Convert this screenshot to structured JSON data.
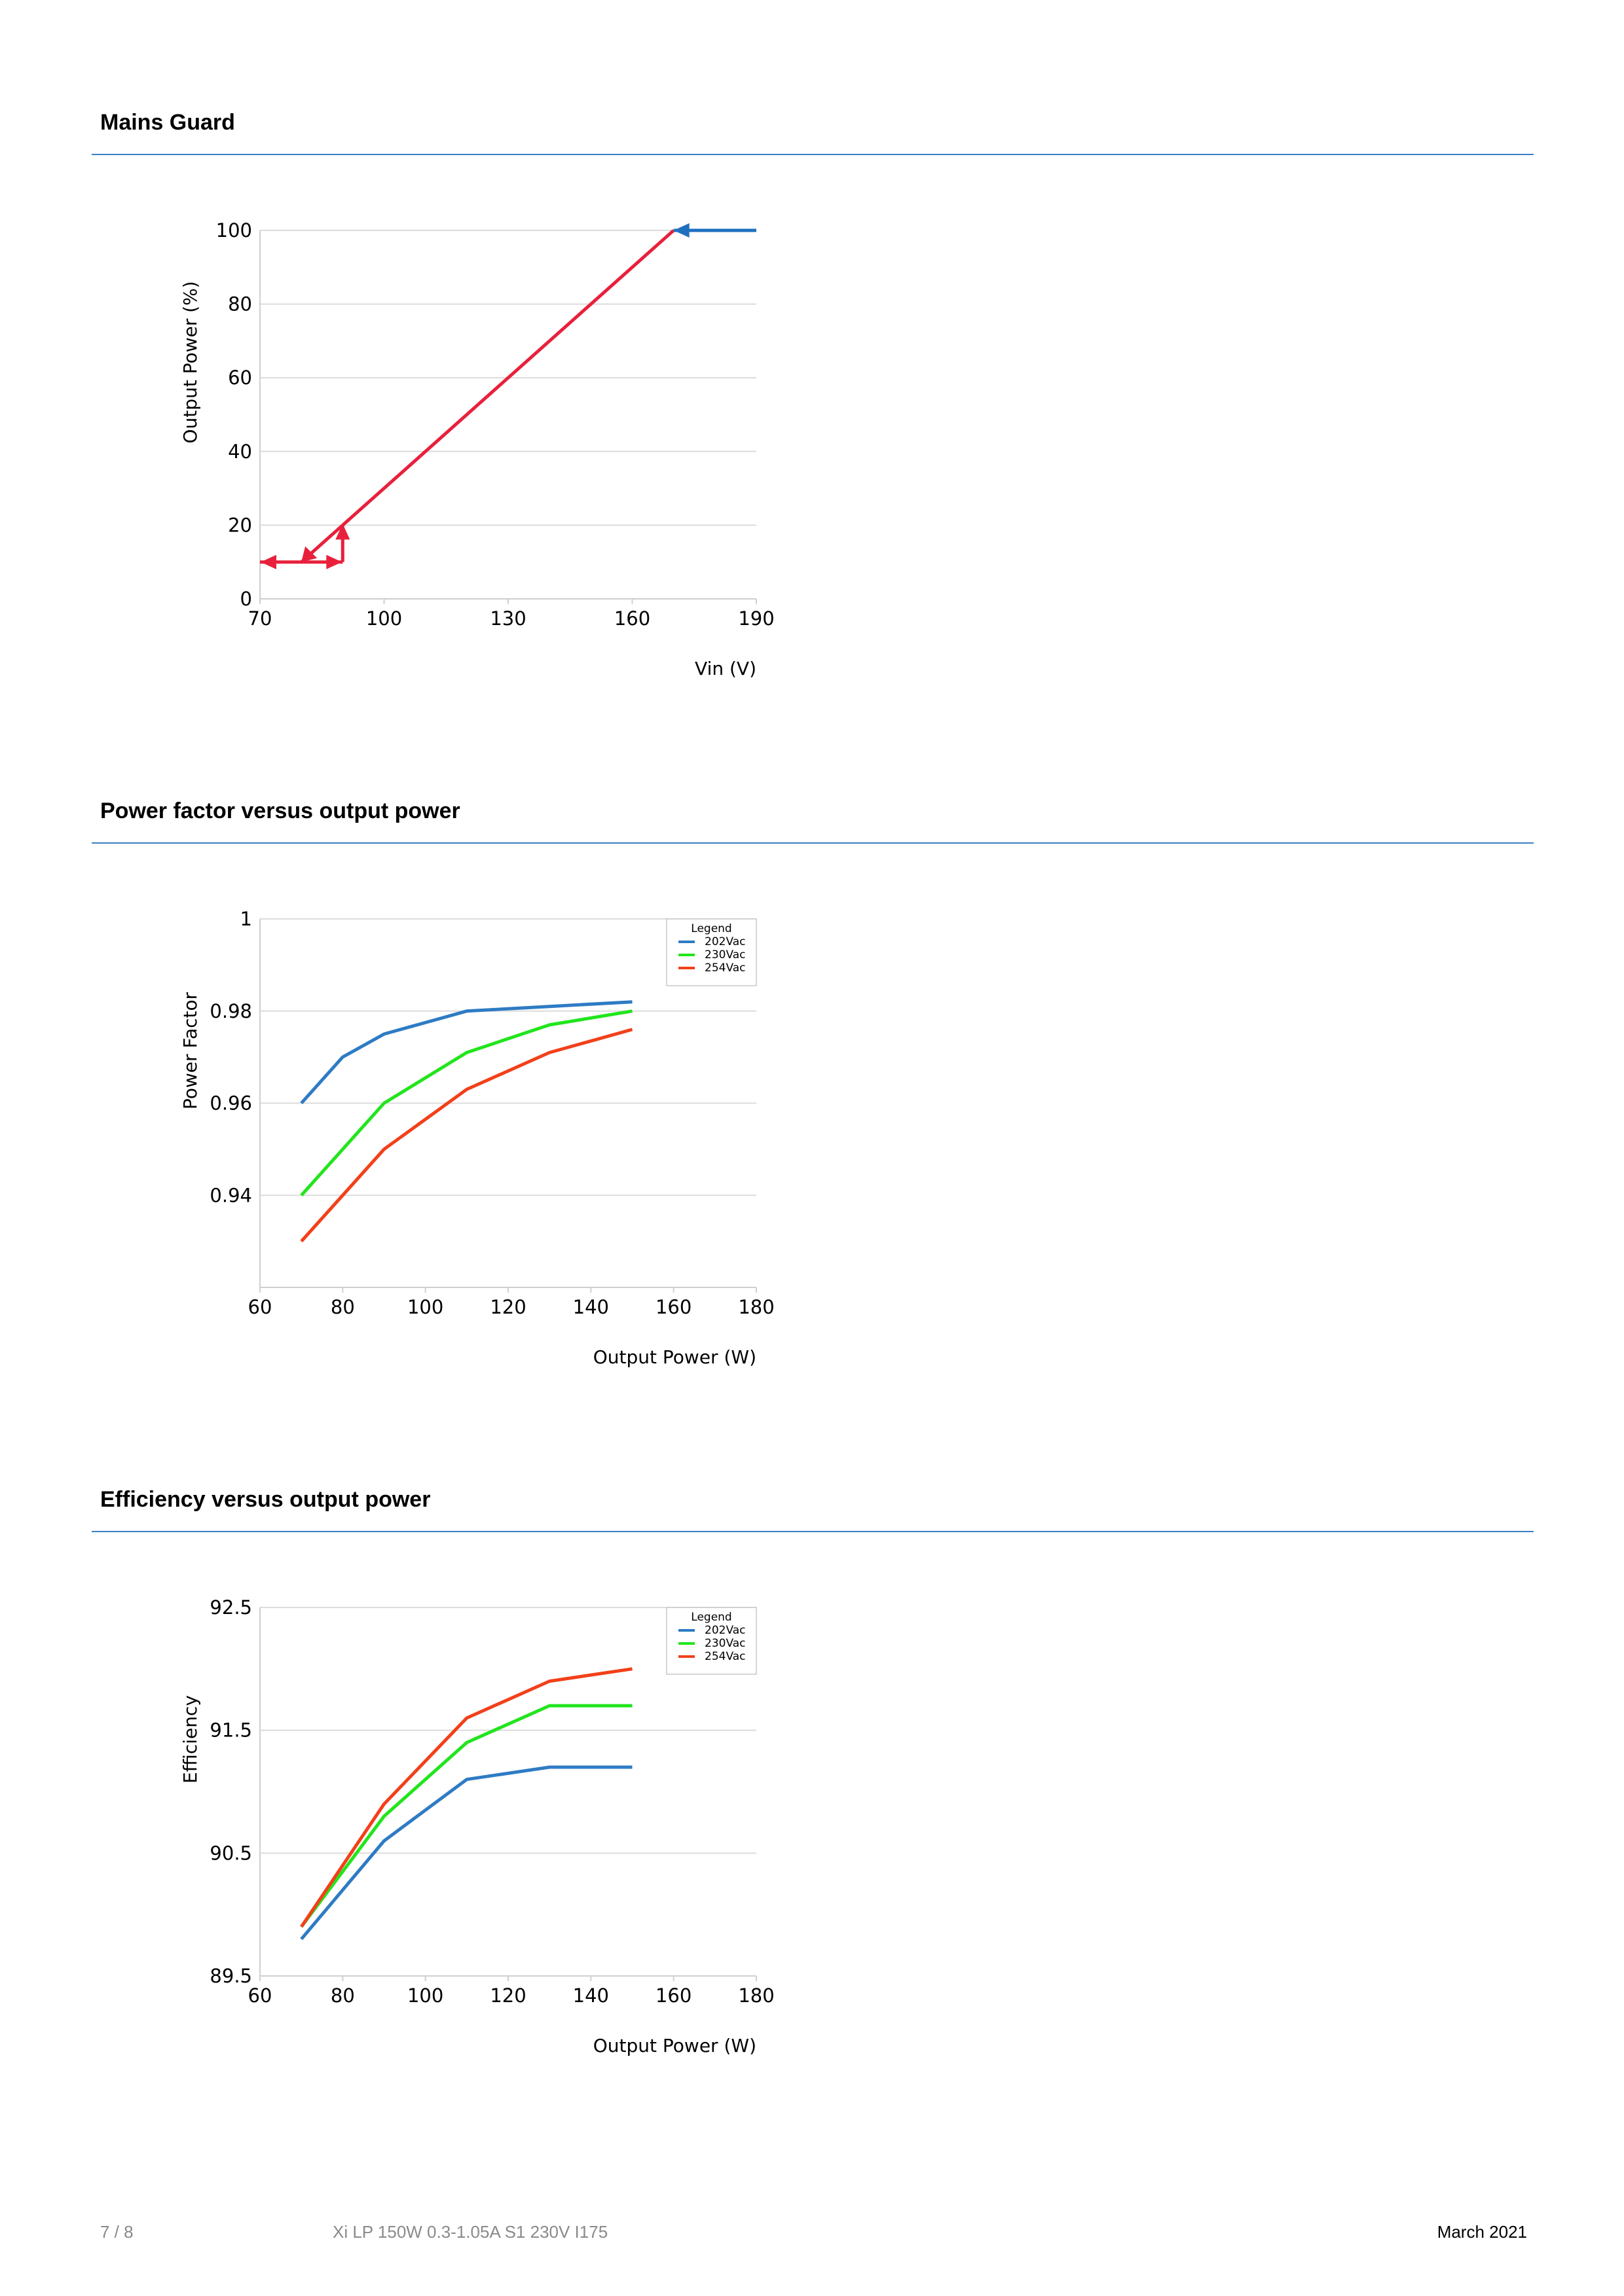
{
  "sections": [
    {
      "title": "Mains Guard"
    },
    {
      "title": "Power factor versus output power"
    },
    {
      "title": "Efficiency versus output power"
    }
  ],
  "footer": {
    "page": "7 / 8",
    "product": "Xi LP 150W 0.3-1.05A S1 230V I175",
    "date": "March 2021"
  },
  "chart_data": [
    {
      "type": "line",
      "title": "",
      "xlabel": "Vin (V)",
      "ylabel": "Output Power (%)",
      "xlim": [
        70,
        190
      ],
      "ylim": [
        0,
        100
      ],
      "xticks": [
        "70",
        "100",
        "130",
        "160",
        "190"
      ],
      "yticks": [
        "0",
        "20",
        "40",
        "60",
        "80",
        "100"
      ],
      "grid": true,
      "series": [
        {
          "color": "#e8203c",
          "points": [
            [
              70,
              10
            ],
            [
              90,
              10
            ]
          ]
        },
        {
          "color": "#e8203c",
          "points": [
            [
              90,
              10
            ],
            [
              90,
              20
            ]
          ]
        },
        {
          "color": "#e8203c",
          "points": [
            [
              90,
              20
            ],
            [
              170,
              100
            ]
          ]
        },
        {
          "color": "#e8203c",
          "points": [
            [
              80,
              10
            ],
            [
              90,
              20
            ]
          ]
        },
        {
          "color": "#1f6fbf",
          "points": [
            [
              190,
              100
            ],
            [
              170,
              100
            ]
          ]
        }
      ]
    },
    {
      "type": "line",
      "title": "",
      "xlabel": "Output Power (W)",
      "ylabel": "Power Factor",
      "xlim": [
        60,
        180
      ],
      "ylim": [
        0.92,
        1
      ],
      "xticks": [
        "60",
        "80",
        "100",
        "120",
        "140",
        "160",
        "180"
      ],
      "yticks": [
        "0.94",
        "0.96",
        "0.98",
        "1"
      ],
      "grid": true,
      "legend": {
        "title": "Legend",
        "position": "top-right"
      },
      "x": [
        70,
        80,
        90,
        110,
        130,
        150
      ],
      "series": [
        {
          "name": "202Vac",
          "color": "#2e7bc4",
          "values": [
            0.96,
            0.97,
            0.975,
            0.98,
            0.981,
            0.982
          ]
        },
        {
          "name": "230Vac",
          "color": "#22e51d",
          "values": [
            0.94,
            0.95,
            0.96,
            0.971,
            0.977,
            0.98
          ]
        },
        {
          "name": "254Vac",
          "color": "#f2401a",
          "values": [
            0.93,
            0.94,
            0.95,
            0.963,
            0.971,
            0.976
          ]
        }
      ]
    },
    {
      "type": "line",
      "title": "",
      "xlabel": "Output Power (W)",
      "ylabel": "Efficiency",
      "xlim": [
        60,
        180
      ],
      "ylim": [
        89.5,
        92.5
      ],
      "xticks": [
        "60",
        "80",
        "100",
        "120",
        "140",
        "160",
        "180"
      ],
      "yticks": [
        "89.5",
        "90.5",
        "91.5",
        "92.5"
      ],
      "grid": true,
      "legend": {
        "title": "Legend",
        "position": "top-right"
      },
      "x": [
        70,
        90,
        110,
        130,
        150
      ],
      "series": [
        {
          "name": "202Vac",
          "color": "#2e7bc4",
          "values": [
            89.8,
            90.6,
            91.1,
            91.2,
            91.2
          ]
        },
        {
          "name": "230Vac",
          "color": "#22e51d",
          "values": [
            89.9,
            90.8,
            91.4,
            91.7,
            91.7
          ]
        },
        {
          "name": "254Vac",
          "color": "#f2401a",
          "values": [
            89.9,
            90.9,
            91.6,
            91.9,
            92.0
          ]
        }
      ]
    }
  ]
}
